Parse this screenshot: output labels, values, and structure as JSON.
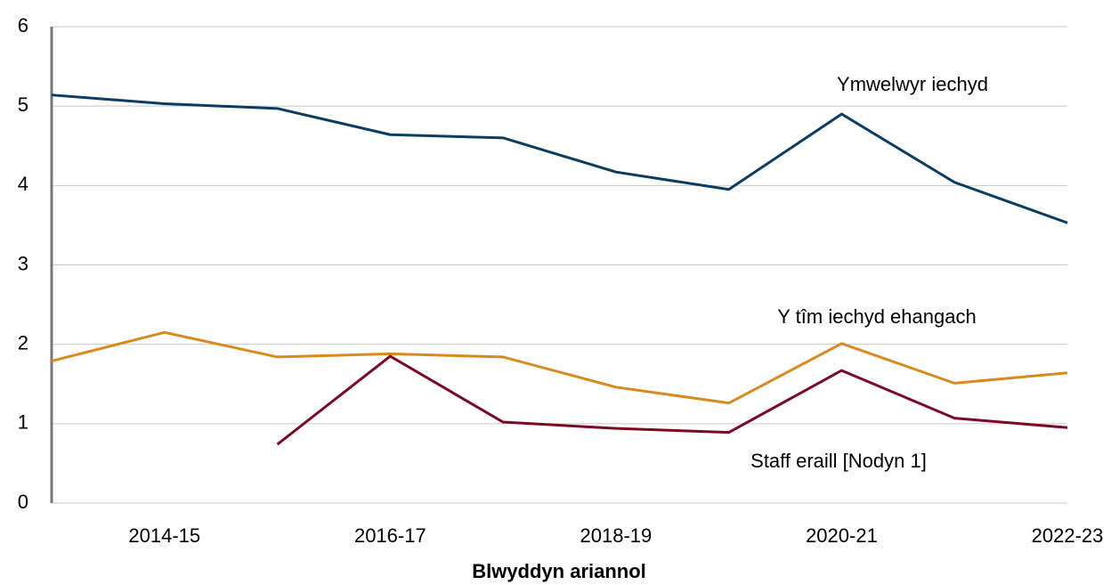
{
  "chart_data": {
    "type": "line",
    "x_label": "Blwyddyn ariannol",
    "categories": [
      null,
      "2014-15",
      null,
      "2016-17",
      null,
      "2018-19",
      null,
      "2020-21",
      null,
      "2022-23"
    ],
    "series": [
      {
        "name": "Ymwelwyr iechyd",
        "color": "#0b3c61",
        "values": [
          5.14,
          5.03,
          4.97,
          4.64,
          4.6,
          4.17,
          3.95,
          4.9,
          4.04,
          3.53
        ]
      },
      {
        "name": "Y tîm iechyd ehangach",
        "color": "#d98a1e",
        "values": [
          1.79,
          2.15,
          1.84,
          1.88,
          1.84,
          1.46,
          1.26,
          2.01,
          1.51,
          1.64
        ]
      },
      {
        "name": "Staff eraill [Nodyn 1]",
        "color": "#7b0a24",
        "values": [
          null,
          null,
          0.74,
          1.85,
          1.02,
          0.94,
          0.89,
          1.67,
          1.07,
          0.95
        ]
      }
    ],
    "ylim": [
      0,
      6
    ],
    "yticks": [
      0,
      1,
      2,
      3,
      4,
      5,
      6
    ],
    "grid": true
  }
}
